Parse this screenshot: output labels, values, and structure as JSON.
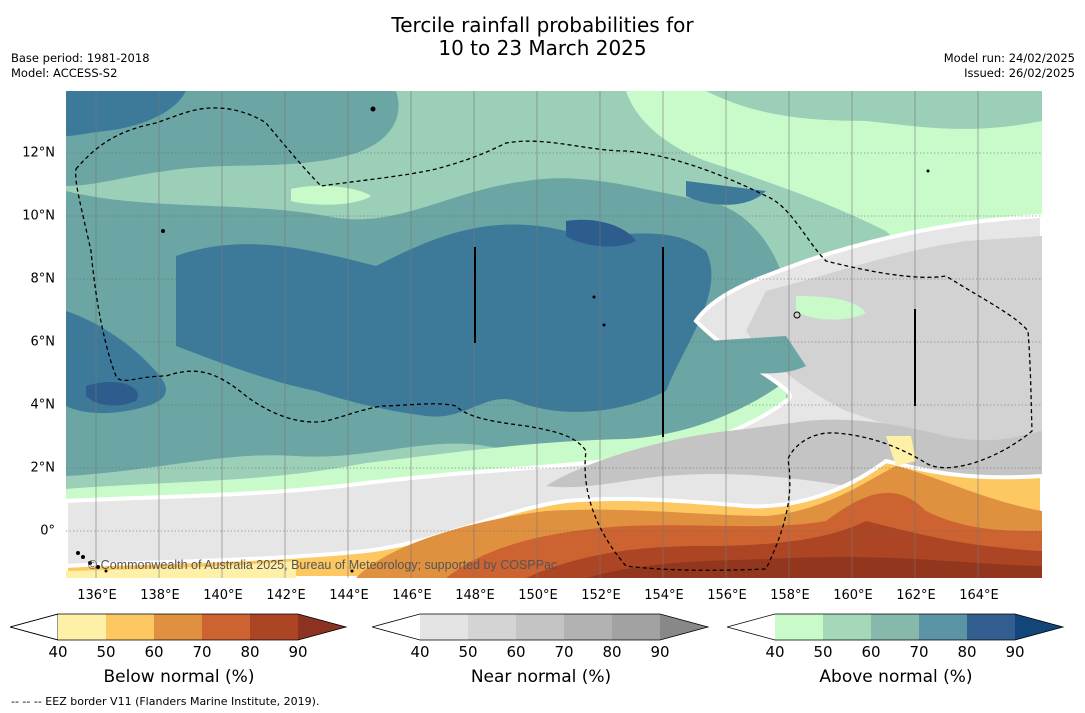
{
  "title": {
    "line1": "Tercile rainfall probabilities for",
    "line2": "10 to 23 March 2025"
  },
  "meta_left": {
    "base_period": "Base period: 1981-2018",
    "model": "Model: ACCESS-S2"
  },
  "meta_right": {
    "model_run": "Model run: 24/02/2025",
    "issued": "Issued: 26/02/2025"
  },
  "lat_labels": [
    "12°N",
    "10°N",
    "8°N",
    "6°N",
    "4°N",
    "2°N",
    "0°"
  ],
  "lon_labels": [
    "136°E",
    "138°E",
    "140°E",
    "142°E",
    "144°E",
    "146°E",
    "148°E",
    "150°E",
    "152°E",
    "154°E",
    "156°E",
    "158°E",
    "160°E",
    "162°E",
    "164°E"
  ],
  "copyright": "© Commonwealth of Australia 2025, Bureau of Meteorology; supported by COSPPac",
  "colorbars": [
    {
      "label": "Below normal (%)",
      "ticks": [
        "40",
        "50",
        "60",
        "70",
        "80",
        "90"
      ],
      "colors": [
        "#fff0a8",
        "#fdc761",
        "#e0913f",
        "#cc6331",
        "#ab4524",
        "#8b3220"
      ]
    },
    {
      "label": "Near normal (%)",
      "ticks": [
        "40",
        "50",
        "60",
        "70",
        "80",
        "90"
      ],
      "colors": [
        "#e4e4e4",
        "#d4d4d4",
        "#c4c4c4",
        "#b2b2b2",
        "#a2a2a2",
        "#888888"
      ]
    },
    {
      "label": "Above normal (%)",
      "ticks": [
        "40",
        "50",
        "60",
        "70",
        "80",
        "90"
      ],
      "colors": [
        "#c9fbca",
        "#a4d8b8",
        "#86b8ac",
        "#5b94a4",
        "#325f8f",
        "#12457a"
      ]
    }
  ],
  "footer": "--  --  -- EEZ border V11 (Flanders Marine Institute, 2019).",
  "colors": {
    "above": [
      "#c9fbca",
      "#9ccfb7",
      "#6ba6a4",
      "#3d7a9a",
      "#2d5d8d"
    ],
    "near": [
      "#e6e6e6",
      "#d2d2d2",
      "#c4c4c4",
      "#b0b0b0"
    ],
    "below": [
      "#fff0a8",
      "#fdc761",
      "#e0913f",
      "#cc6331",
      "#ab4524",
      "#93361e"
    ]
  }
}
